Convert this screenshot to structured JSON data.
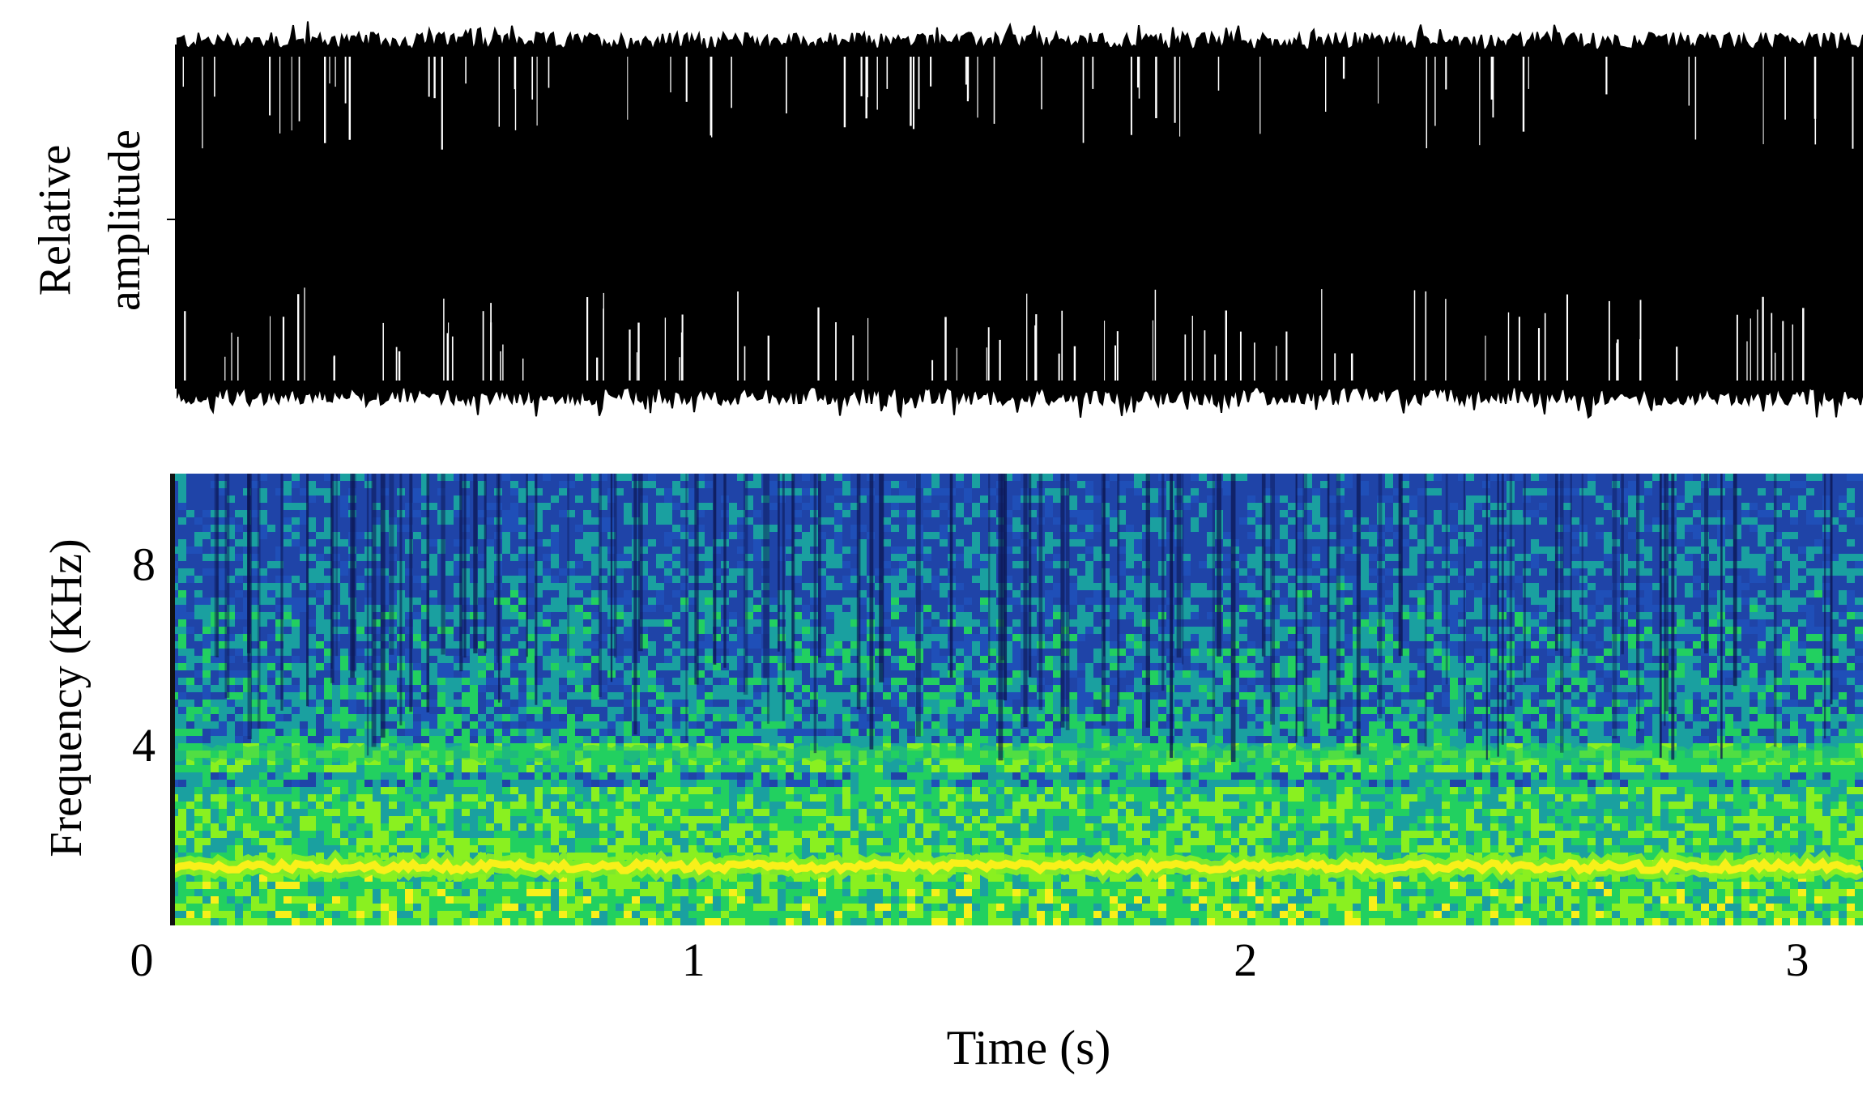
{
  "chart_data": [
    {
      "type": "area",
      "panel": "waveform",
      "ylabel": [
        "Relative",
        "amplitude"
      ],
      "xlim": [
        0,
        3.1
      ],
      "ylim": [
        -1,
        1
      ],
      "yticks": [
        0
      ],
      "grid": false,
      "colors": {
        "signal": "#000000",
        "axis": "#000000"
      }
    },
    {
      "type": "heatmap",
      "panel": "spectrogram",
      "ylabel": "Frequency (KHz)",
      "xlabel": "Time (s)",
      "xlim": [
        0,
        3.1
      ],
      "ylim": [
        0,
        10
      ],
      "xticks": [
        {
          "value": 0,
          "label": "0"
        },
        {
          "value": 1,
          "label": "1"
        },
        {
          "value": 2,
          "label": "2"
        },
        {
          "value": 3,
          "label": "3"
        }
      ],
      "yticks": [
        {
          "value": 4,
          "label": "4"
        },
        {
          "value": 8,
          "label": "8"
        }
      ],
      "bands": [
        {
          "freq_khz": 1.3,
          "strength": "peak"
        },
        {
          "freq_khz": 3.8,
          "strength": "moderate"
        }
      ],
      "colormap": [
        "#0a1a6e",
        "#1f4fb8",
        "#1aa0a0",
        "#22d060",
        "#8af020",
        "#f8f01a"
      ],
      "grid": false
    }
  ]
}
